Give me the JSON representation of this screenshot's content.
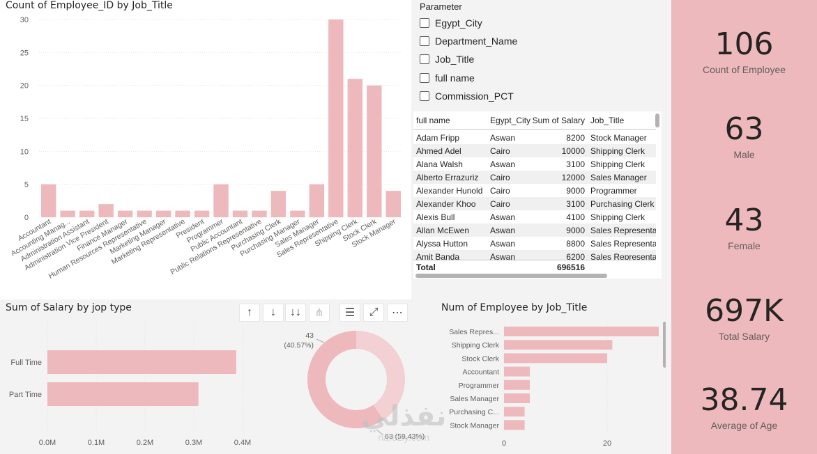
{
  "chart_data": [
    {
      "type": "bar",
      "title": "Count of Employee_ID by Job_Title",
      "categories": [
        "Accountant",
        "Accounting Manag...",
        "Administration Assistant",
        "Administration Vice President",
        "Finance Manager",
        "Human Resources Representative",
        "Marketing Manager",
        "Marketing Representative",
        "President",
        "Programmer",
        "Public Accountant",
        "Public Relations Representative",
        "Purchasing Clerk",
        "Purchasing Manager",
        "Sales Manager",
        "Sales Representative",
        "Shipping Clerk",
        "Stock Clerk",
        "Stock Manager"
      ],
      "values": [
        5,
        1,
        1,
        2,
        1,
        1,
        1,
        1,
        1,
        5,
        1,
        1,
        4,
        1,
        5,
        30,
        21,
        20,
        4
      ],
      "ylim": [
        0,
        30
      ],
      "yticks": [
        0,
        5,
        10,
        15,
        20,
        25,
        30
      ],
      "bar_color": "#eeb9bd"
    },
    {
      "type": "bar",
      "orientation": "horizontal",
      "title": "Sum of Salary by jop type",
      "categories": [
        "Full Time",
        "Part Time"
      ],
      "values": [
        387000,
        309516
      ],
      "xlim": [
        0,
        400000
      ],
      "xticks": [
        0,
        100000,
        200000,
        300000,
        400000
      ],
      "xtick_labels": [
        "0.0M",
        "0.1M",
        "0.2M",
        "0.3M",
        "0.4M"
      ],
      "bar_color": "#eeb9bd"
    },
    {
      "type": "pie",
      "donut": true,
      "slices": [
        {
          "value": 43,
          "label": "43",
          "pct_label": "(40.57%)",
          "color": "#f2d0d3"
        },
        {
          "value": 63,
          "label": "63 (59.43%)",
          "color": "#eeb9bd"
        }
      ]
    },
    {
      "type": "bar",
      "orientation": "horizontal",
      "title": "Num of Employee by Job_Title",
      "categories": [
        "Sales Repres...",
        "Shipping Clerk",
        "Stock Clerk",
        "Accountant",
        "Programmer",
        "Sales Manager",
        "Purchasing C...",
        "Stock Manager"
      ],
      "values": [
        30,
        21,
        20,
        5,
        5,
        5,
        4,
        4
      ],
      "xlim": [
        0,
        30
      ],
      "xticks": [
        0,
        20
      ],
      "bar_color": "#eeb9bd"
    }
  ],
  "parameter": {
    "title": "Parameter",
    "items": [
      "Egypt_City",
      "Department_Name",
      "Job_Title",
      "full name",
      "Commission_PCT"
    ]
  },
  "table": {
    "headers": [
      "full name",
      "Egypt_City",
      "Sum of Salary",
      "Job_Title"
    ],
    "rows": [
      [
        "Adam Fripp",
        "Aswan",
        "8200",
        "Stock Manager"
      ],
      [
        "Ahmed Adel",
        "Cairo",
        "10000",
        "Shipping Clerk"
      ],
      [
        "Alana Walsh",
        "Aswan",
        "3100",
        "Shipping Clerk"
      ],
      [
        "Alberto Errazuriz",
        "Cairo",
        "12000",
        "Sales Manager"
      ],
      [
        "Alexander Hunold",
        "Cairo",
        "9000",
        "Programmer"
      ],
      [
        "Alexander Khoo",
        "Cairo",
        "3100",
        "Purchasing Clerk"
      ],
      [
        "Alexis Bull",
        "Aswan",
        "4100",
        "Shipping Clerk"
      ],
      [
        "Allan McEwen",
        "Aswan",
        "9000",
        "Sales Representative"
      ],
      [
        "Alyssa Hutton",
        "Aswan",
        "8800",
        "Sales Representative"
      ],
      [
        "Amit Banda",
        "Aswan",
        "6200",
        "Sales Representative"
      ]
    ],
    "total_label": "Total",
    "total_value": "696516"
  },
  "kpis": [
    {
      "value": "106",
      "label": "Count of Employee"
    },
    {
      "value": "63",
      "label": "Male"
    },
    {
      "value": "43",
      "label": "Female"
    },
    {
      "value": "697K",
      "label": "Total Salary"
    },
    {
      "value": "38.74",
      "label": "Average of Age"
    }
  ],
  "toolbar": {
    "up_icon": "arrow-up-icon",
    "down_icon": "arrow-down-icon",
    "drill_icon": "double-arrow-down-icon",
    "expand_icon": "hierarchy-icon",
    "filter_icon": "filter-icon",
    "focus_icon": "focus-mode-icon",
    "more_icon": "more-options-icon"
  },
  "watermark": {
    "arabic": "نفذلي",
    "latin": "nafezly.com"
  }
}
